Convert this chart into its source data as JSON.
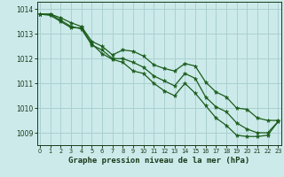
{
  "title": "Graphe pression niveau de la mer (hPa)",
  "bg_color": "#cceaea",
  "grid_color": "#aad0d0",
  "line_color": "#1a5c1a",
  "xlim": [
    -0.3,
    23.3
  ],
  "ylim": [
    1008.5,
    1014.3
  ],
  "yticks": [
    1009,
    1010,
    1011,
    1012,
    1013,
    1014
  ],
  "xticks": [
    0,
    1,
    2,
    3,
    4,
    5,
    6,
    7,
    8,
    9,
    10,
    11,
    12,
    13,
    14,
    15,
    16,
    17,
    18,
    19,
    20,
    21,
    22,
    23
  ],
  "series1": [
    1013.8,
    1013.8,
    1013.65,
    1013.45,
    1013.3,
    1012.7,
    1012.5,
    1012.15,
    1012.35,
    1012.3,
    1012.1,
    1011.75,
    1011.6,
    1011.5,
    1011.8,
    1011.7,
    1011.05,
    1010.65,
    1010.45,
    1010.0,
    1009.95,
    1009.6,
    1009.5,
    1009.5
  ],
  "series2": [
    1013.8,
    1013.8,
    1013.55,
    1013.3,
    1013.2,
    1012.55,
    1012.35,
    1012.0,
    1012.0,
    1011.85,
    1011.65,
    1011.3,
    1011.1,
    1010.9,
    1011.4,
    1011.2,
    1010.45,
    1010.05,
    1009.85,
    1009.4,
    1009.15,
    1009.0,
    1009.0,
    1009.45
  ],
  "series3": [
    1013.8,
    1013.75,
    1013.5,
    1013.25,
    1013.25,
    1012.6,
    1012.2,
    1011.97,
    1011.85,
    1011.5,
    1011.4,
    1011.0,
    1010.7,
    1010.5,
    1011.0,
    1010.6,
    1010.1,
    1009.6,
    1009.3,
    1008.9,
    1008.85,
    1008.85,
    1008.9,
    1009.45
  ]
}
